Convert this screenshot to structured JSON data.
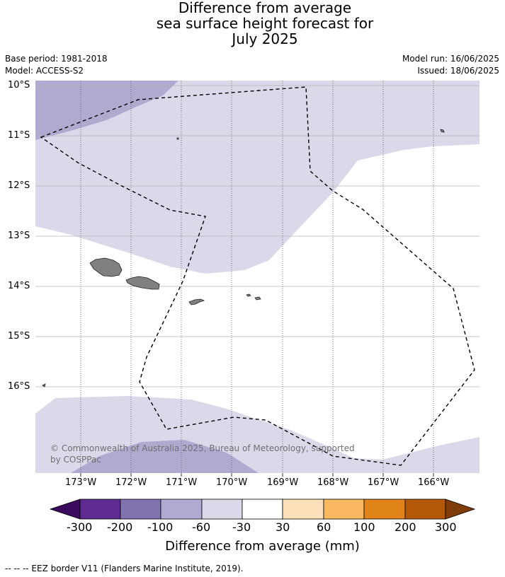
{
  "title": {
    "line1": "Difference from average",
    "line2": "sea surface height forecast for",
    "line3": "July 2025"
  },
  "meta": {
    "base_period": "Base period: 1981-2018",
    "model": "Model: ACCESS-S2",
    "model_run": "Model run: 16/06/2025",
    "issued": "Issued: 18/06/2025"
  },
  "map": {
    "lat_labels": [
      "10°S",
      "11°S",
      "12°S",
      "13°S",
      "14°S",
      "15°S",
      "16°S"
    ],
    "lon_labels": [
      "173°W",
      "172°W",
      "171°W",
      "170°W",
      "169°W",
      "168°W",
      "167°W",
      "166°W"
    ],
    "land_color": "#808080",
    "eez_line": "dashed",
    "copyright": "© Commonwealth of Australia 2025, Bureau of Meteorology, supported by COSPPac"
  },
  "colorbar": {
    "title": "Difference from average (mm)",
    "tick_labels": [
      "-300",
      "-200",
      "-100",
      "-60",
      "-30",
      "30",
      "60",
      "100",
      "200",
      "300"
    ],
    "colors": [
      "#3a0a5e",
      "#5e2b91",
      "#8173b0",
      "#b0aad2",
      "#dadaeb",
      "#ffffff",
      "#fde0b9",
      "#fbb862",
      "#e08419",
      "#b35807",
      "#7f3b08"
    ]
  },
  "footnote": "--  --  -- EEZ border V11 (Flanders Marine Institute, 2019)."
}
